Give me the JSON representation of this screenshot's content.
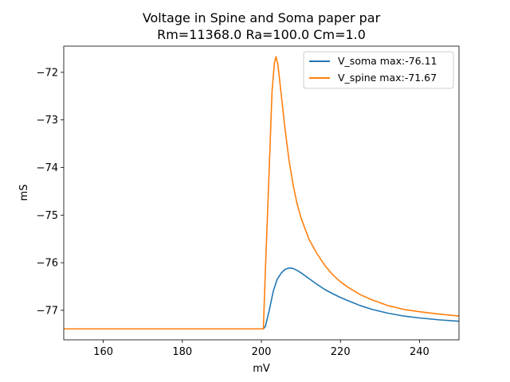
{
  "chart_data": {
    "type": "line",
    "title": "Voltage in Spine and Soma paper par",
    "subtitle": "Rm=11368.0 Ra=100.0 Cm=1.0",
    "xlabel": "mV",
    "ylabel": "mS",
    "xlim": [
      150,
      250
    ],
    "ylim": [
      -77.62,
      -71.45
    ],
    "xticks": [
      160,
      180,
      200,
      220,
      240
    ],
    "xtick_labels": [
      "160",
      "180",
      "200",
      "220",
      "240"
    ],
    "yticks": [
      -72,
      -73,
      -74,
      -75,
      -76,
      -77
    ],
    "ytick_labels": [
      "−72",
      "−73",
      "−74",
      "−75",
      "−76",
      "−77"
    ],
    "grid": false,
    "legend_position": "top-right",
    "series": [
      {
        "name": "V_soma max:-76.11",
        "color": "#1f77b4",
        "x": [
          150,
          200.5,
          201,
          202,
          203,
          204,
          205,
          206,
          207,
          208,
          209,
          210,
          212,
          214,
          216,
          218,
          220,
          222,
          225,
          228,
          232,
          236,
          240,
          245,
          250
        ],
        "y": [
          -77.39,
          -77.39,
          -77.34,
          -77.0,
          -76.6,
          -76.35,
          -76.22,
          -76.14,
          -76.11,
          -76.12,
          -76.16,
          -76.21,
          -76.33,
          -76.45,
          -76.56,
          -76.65,
          -76.73,
          -76.8,
          -76.9,
          -76.98,
          -77.06,
          -77.12,
          -77.16,
          -77.2,
          -77.23
        ]
      },
      {
        "name": "V_spine max:-71.67",
        "color": "#ff7f0e",
        "x": [
          150,
          200.5,
          201,
          202,
          202.7,
          203.3,
          203.7,
          204.2,
          205,
          206,
          207,
          208,
          209,
          210,
          212,
          214,
          216,
          218,
          220,
          222,
          225,
          228,
          232,
          236,
          240,
          245,
          250
        ],
        "y": [
          -77.39,
          -77.39,
          -76.2,
          -74.0,
          -72.4,
          -71.8,
          -71.67,
          -71.85,
          -72.45,
          -73.2,
          -73.85,
          -74.35,
          -74.75,
          -75.05,
          -75.5,
          -75.8,
          -76.05,
          -76.25,
          -76.4,
          -76.52,
          -76.67,
          -76.78,
          -76.9,
          -76.98,
          -77.03,
          -77.08,
          -77.12
        ]
      }
    ]
  }
}
